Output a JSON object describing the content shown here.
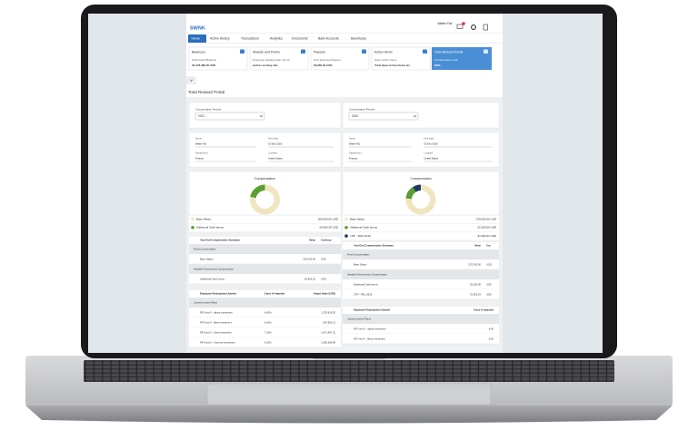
{
  "header": {
    "logo": "SWNK",
    "user": "Walter Fat"
  },
  "nav": [
    "Home",
    "Action History",
    "Transactions",
    "Analytics",
    "Documents",
    "Bank Accounts",
    "Beneficiary"
  ],
  "cards": [
    {
      "title": "Balances",
      "line1": "Total Award Balance",
      "line2": "23,478,486.05 USD"
    },
    {
      "title": "Awards and Points",
      "line1": "Employee detailed plan info as",
      "line2": "well as vesting info."
    },
    {
      "title": "Payouts",
      "line1": "Next Expected Payout",
      "line2": "29,860.00 USD"
    },
    {
      "title": "Action Items",
      "line1": "Open Action Items",
      "line2": "Total Open Action Items (1)"
    },
    {
      "title": "Total Reward Portal",
      "line1": "Compensation year",
      "line2": "2021"
    }
  ],
  "page_title": "Total Reward Portal",
  "panels": [
    {
      "period_label": "Compensation Periods",
      "period": "2021",
      "fields": [
        [
          "Name",
          "Hire Date"
        ],
        [
          "Walter Fat",
          "01-Dec-2016"
        ],
        [
          "Department",
          "Location"
        ],
        [
          "Finance",
          "United States"
        ]
      ],
      "chart": {
        "title": "Compensation",
        "items": [
          {
            "name": "Base Salary",
            "value": 200000,
            "label": "200,000.00 USD",
            "color": "#efe6bf"
          },
          {
            "name": "Additional Cash bonus",
            "value": 56826.25,
            "label": "56,826.25 USD",
            "color": "#5c9e31"
          }
        ]
      },
      "summary": {
        "headers": [
          "Year End Compensation Summary",
          "Value",
          "Currency"
        ],
        "rows": [
          [
            "Fixed Compensation"
          ],
          [
            "Base Salary",
            "200,000.00",
            "USD"
          ],
          [
            "Variable Discretionary Compensation"
          ],
          [
            "Additional Cash bonus",
            "56,826.25",
            "USD"
          ]
        ]
      },
      "awards": {
        "headers": [
          "Employee Participation Awards",
          "Carry % Awarded",
          "Award Value (USD)"
        ],
        "rows": [
          [
            "Carried Interest Plans"
          ],
          [
            "PE Fund V - alpha investment",
            "6.60%",
            "1,378,819.55"
          ],
          [
            "PE Fund V - Beta investment",
            "6.60%",
            "557,833.13"
          ],
          [
            "PE Fund V - Zeta investment",
            "7.10%",
            "1,671,487.31"
          ],
          [
            "PE Fund V - Gamma investment",
            "6.20%",
            "1,900,266.86"
          ]
        ]
      }
    },
    {
      "period_label": "Compensation Periods",
      "period": "2020",
      "fields": [
        [
          "Name",
          "Hire Date"
        ],
        [
          "Walter Fat",
          "01-Dec-2016"
        ],
        [
          "Department",
          "Location"
        ],
        [
          "Finance",
          "United States"
        ]
      ],
      "chart": {
        "title": "Compensation",
        "items": [
          {
            "name": "Base Salary",
            "value": 270000,
            "label": "270,000.00 USD",
            "color": "#efe6bf"
          },
          {
            "name": "Additional Cash bonus",
            "value": 52200,
            "label": "52,200.00 USD",
            "color": "#5c9e31"
          },
          {
            "name": "LTIP - RSU 2019",
            "value": 31992.62,
            "label": "31,992.62 USD",
            "color": "#1d3a66"
          }
        ]
      },
      "summary": {
        "headers": [
          "Year End Compensation Summary",
          "Value",
          "Cur"
        ],
        "rows": [
          [
            "Fixed Compensation"
          ],
          [
            "Base Salary",
            "270,000.00",
            "USD"
          ],
          [
            "Variable Discretionary Compensation"
          ],
          [
            "Additional Cash bonus",
            "52,200.00",
            "USD"
          ],
          [
            "LTIP - RSU 2019",
            "31,992.62",
            "USD"
          ]
        ]
      },
      "awards": {
        "headers": [
          "Employee Participation Awards",
          "Carry % awarded"
        ],
        "rows": [
          [
            "Carried Interest Plans"
          ],
          [
            "PE Fund V - alpha investment",
            "6.60"
          ],
          [
            "PE Fund V - Beta investment",
            "6.60"
          ]
        ]
      }
    }
  ]
}
